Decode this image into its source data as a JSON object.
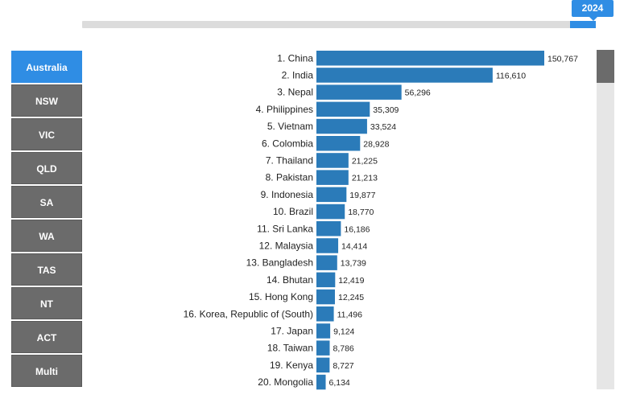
{
  "year_slider": {
    "year": "2024"
  },
  "regions": [
    "Australia",
    "NSW",
    "VIC",
    "QLD",
    "SA",
    "WA",
    "TAS",
    "NT",
    "ACT",
    "Multi"
  ],
  "active_region": "Australia",
  "colors": {
    "bar": "#2b7bb9",
    "accent": "#2f8de4",
    "button": "#6b6b6b"
  },
  "chart_data": {
    "type": "bar",
    "orientation": "horizontal",
    "categories": [
      "1. China",
      "2. India",
      "3. Nepal",
      "4. Philippines",
      "5. Vietnam",
      "6. Colombia",
      "7. Thailand",
      "8. Pakistan",
      "9. Indonesia",
      "10. Brazil",
      "11. Sri Lanka",
      "12. Malaysia",
      "13. Bangladesh",
      "14. Bhutan",
      "15. Hong Kong",
      "16. Korea, Republic of (South)",
      "17. Japan",
      "18. Taiwan",
      "19. Kenya",
      "20. Mongolia"
    ],
    "values": [
      150767,
      116610,
      56296,
      35309,
      33524,
      28928,
      21225,
      21213,
      19877,
      18770,
      16186,
      14414,
      13739,
      12419,
      12245,
      11496,
      9124,
      8786,
      8727,
      6134
    ],
    "value_labels": [
      "150,767",
      "116,610",
      "56,296",
      "35,309",
      "33,524",
      "28,928",
      "21,225",
      "21,213",
      "19,877",
      "18,770",
      "16,186",
      "14,414",
      "13,739",
      "12,419",
      "12,245",
      "11,496",
      "9,124",
      "8,786",
      "8,727",
      "6,134"
    ],
    "title": "",
    "xlabel": "",
    "ylabel": "",
    "xlim": [
      0,
      150767
    ],
    "grid": false,
    "legend": "none"
  }
}
